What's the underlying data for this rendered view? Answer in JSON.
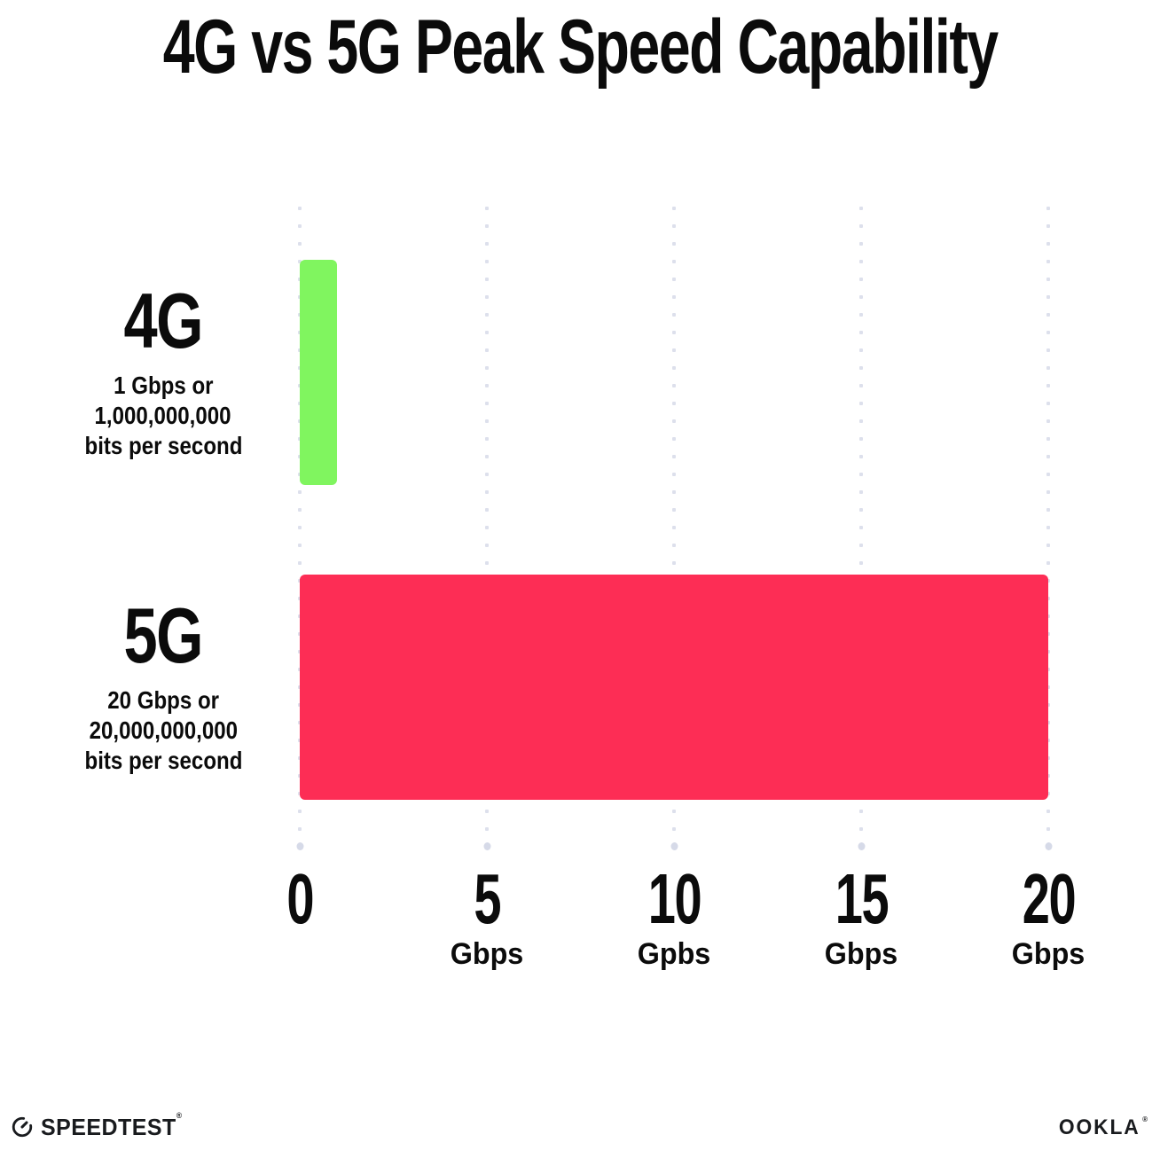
{
  "title": "4G vs 5G Peak Speed Capability",
  "chart_data": {
    "type": "bar",
    "orientation": "horizontal",
    "title": "4G vs 5G Peak Speed Capability",
    "categories": [
      "4G",
      "5G"
    ],
    "values": [
      1,
      20
    ],
    "xlim": [
      0,
      20
    ],
    "grid": "vertical dotted gridlines at 0, 5, 10, 15, 20",
    "bar_colors": [
      "#80F55F",
      "#FD2D55"
    ],
    "rows": [
      {
        "label": "4G",
        "value": 1,
        "sublines": [
          "1 Gbps or",
          "1,000,000,000",
          "bits per second"
        ]
      },
      {
        "label": "5G",
        "value": 20,
        "sublines": [
          "20 Gbps or",
          "20,000,000,000",
          "bits per second"
        ]
      }
    ],
    "x_ticks": [
      {
        "value": "0",
        "unit": ""
      },
      {
        "value": "5",
        "unit": "Gbps"
      },
      {
        "value": "10",
        "unit": "Gpbs"
      },
      {
        "value": "15",
        "unit": "Gbps"
      },
      {
        "value": "20",
        "unit": "Gbps"
      }
    ]
  },
  "footer": {
    "speedtest_label": "SPEEDTEST",
    "speedtest_reg": "®",
    "ookla_label": "OOKLA",
    "ookla_reg": "®"
  },
  "colors": {
    "bar_4g": "#80F55F",
    "bar_5g": "#FD2D55",
    "gridline_dot": "#dde0ec",
    "text": "#0b0b0b"
  }
}
